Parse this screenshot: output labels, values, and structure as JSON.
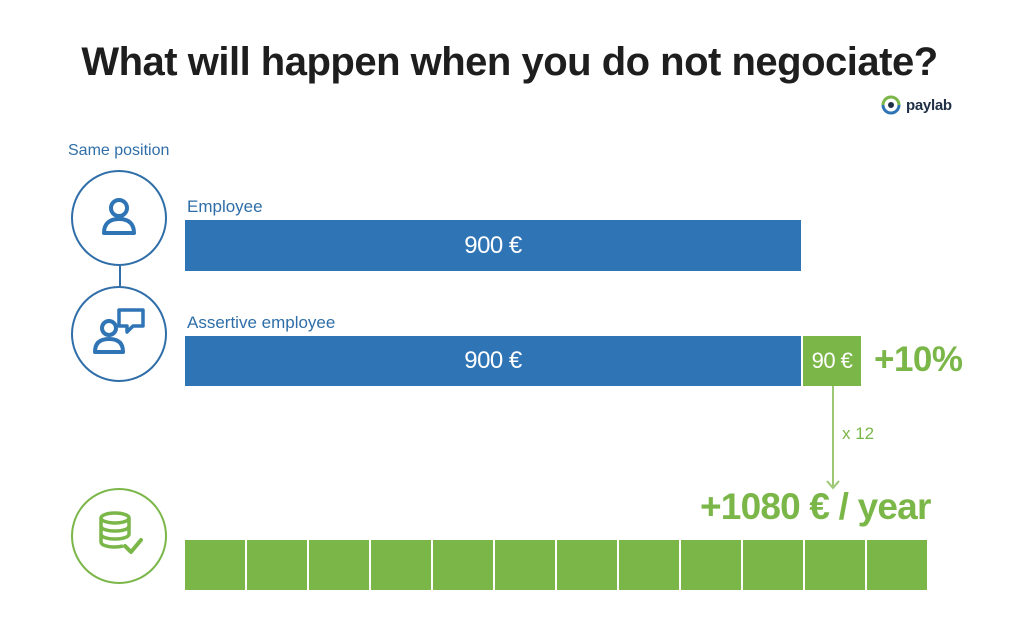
{
  "title": "What will happen when you do not negociate?",
  "logo": {
    "text": "paylab",
    "icon": "paylab-eye-logo"
  },
  "colors": {
    "blue": "#2f74b5",
    "green": "#7ab648",
    "title": "#1e1e1e"
  },
  "same_position_label": "Same position",
  "employee": {
    "label": "Employee",
    "icon": "person-icon",
    "bar_label": "900 €"
  },
  "assertive": {
    "label": "Assertive employee",
    "icon": "person-speech-bubble-icon",
    "bar_label": "900 €",
    "extra_label": "90 €",
    "percent_label": "+10%"
  },
  "yearly": {
    "icon": "coins-checkmark-icon",
    "multiplier_label": "x 12",
    "total_label": "+1080 € / year",
    "months": 12
  }
}
